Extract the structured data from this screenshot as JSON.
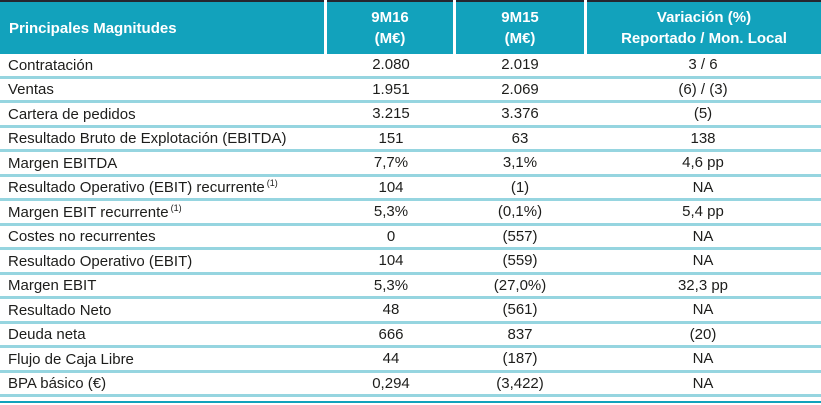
{
  "table": {
    "title": "Principales Magnitudes",
    "header": {
      "col1": "Principales Magnitudes",
      "col2_line1": "9M16",
      "col2_line2": "(M€)",
      "col3_line1": "9M15",
      "col3_line2": "(M€)",
      "col4_line1": "Variación (%)",
      "col4_line2": "Reportado / Mon. Local"
    },
    "rows": [
      {
        "label": "Contratación",
        "v9m16": "2.080",
        "v9m15": "2.019",
        "variation": "3 / 6"
      },
      {
        "label": "Ventas",
        "v9m16": "1.951",
        "v9m15": "2.069",
        "variation": "(6) / (3)"
      },
      {
        "label": "Cartera de pedidos",
        "v9m16": "3.215",
        "v9m15": "3.376",
        "variation": "(5)"
      },
      {
        "label": "Resultado Bruto de Explotación (EBITDA)",
        "v9m16": "151",
        "v9m15": "63",
        "variation": "138"
      },
      {
        "label": "Margen EBITDA",
        "v9m16": "7,7%",
        "v9m15": "3,1%",
        "variation": "4,6 pp"
      },
      {
        "label": "Resultado Operativo (EBIT) recurrente",
        "sup": "(1)",
        "v9m16": "104",
        "v9m15": "(1)",
        "variation": "NA"
      },
      {
        "label": "Margen EBIT recurrente",
        "sup": "(1)",
        "v9m16": "5,3%",
        "v9m15": "(0,1%)",
        "variation": "5,4 pp"
      },
      {
        "label": "Costes no recurrentes",
        "v9m16": "0",
        "v9m15": "(557)",
        "variation": "NA"
      },
      {
        "label": "Resultado Operativo (EBIT)",
        "v9m16": "104",
        "v9m15": "(559)",
        "variation": "NA"
      },
      {
        "label": "Margen EBIT",
        "v9m16": "5,3%",
        "v9m15": "(27,0%)",
        "variation": "32,3 pp"
      },
      {
        "label": "Resultado Neto",
        "v9m16": "48",
        "v9m15": "(561)",
        "variation": "NA"
      },
      {
        "label": "Deuda neta",
        "v9m16": "666",
        "v9m15": "837",
        "variation": "(20)"
      },
      {
        "label": "Flujo de Caja Libre",
        "v9m16": "44",
        "v9m15": "(187)",
        "variation": "NA"
      },
      {
        "label": "BPA básico (€)",
        "v9m16": "0,294",
        "v9m15": "(3,422)",
        "variation": "NA"
      }
    ]
  },
  "colors": {
    "header_bg": "#12a2bc",
    "row_divider": "#96d5e0",
    "top_border": "#26262e",
    "body_text": "#1d1d1b",
    "header_text": "#ffffff",
    "bottom_line": "#12a2bc"
  }
}
